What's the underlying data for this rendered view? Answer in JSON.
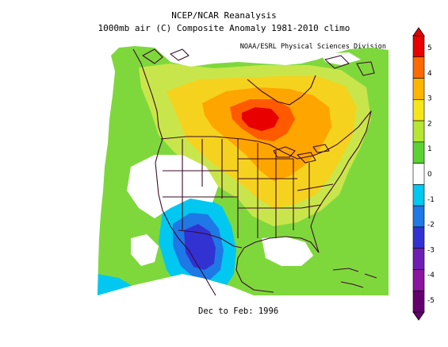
{
  "title_line1": "NCEP/NCAR Reanalysis",
  "title_line2": "1000mb air (C) Composite Anomaly 1981-2010 climo",
  "credit": "NOAA/ESRL Physical Sciences Division",
  "period": "Dec to Feb: 1996",
  "colorbar": {
    "ticks": [
      "5",
      "4",
      "3",
      "2",
      "1",
      "0",
      "-1",
      "-2",
      "-3",
      "-4",
      "-5"
    ],
    "colors": [
      "#e80000",
      "#ff6a00",
      "#ffb400",
      "#f5e61a",
      "#b4e632",
      "#5ad232",
      "#ffffff",
      "#00c8f0",
      "#1e78e6",
      "#3232d2",
      "#6e1eb4",
      "#8c14a0",
      "#64006e"
    ]
  },
  "map": {
    "region": "North America",
    "fill_colors": {
      "pos_1": "#7ed83c",
      "pos_2": "#c8e64b",
      "pos_3": "#f5d21e",
      "pos_4": "#ffa500",
      "pos_5": "#ff5a00",
      "pos_6": "#e80000",
      "neg_1": "#00c8f0",
      "neg_2": "#1e78e6",
      "neg_3": "#3232d2",
      "zero": "#ffffff",
      "border": "#3c0a2a"
    }
  }
}
